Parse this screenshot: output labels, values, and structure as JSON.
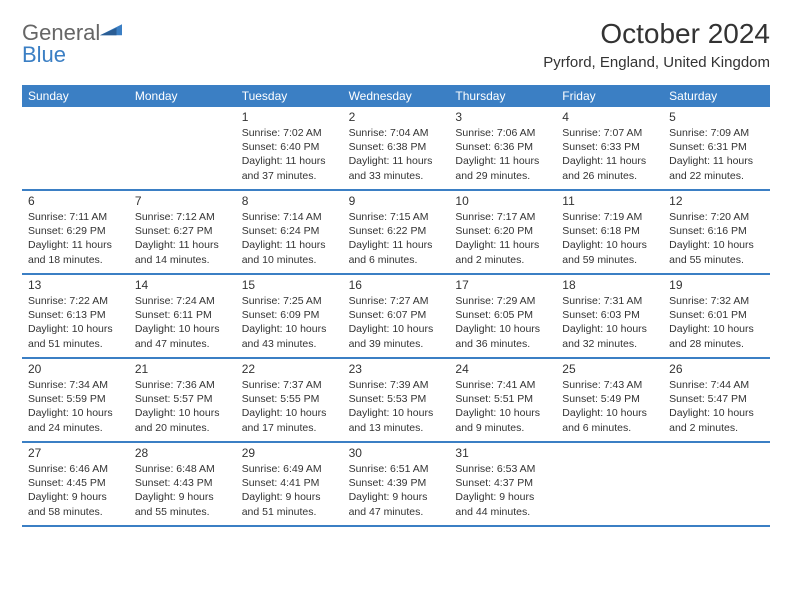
{
  "logo": {
    "text1": "General",
    "text2": "Blue"
  },
  "title": "October 2024",
  "location": "Pyrford, England, United Kingdom",
  "dayHeaders": [
    "Sunday",
    "Monday",
    "Tuesday",
    "Wednesday",
    "Thursday",
    "Friday",
    "Saturday"
  ],
  "header_bg": "#3b7fc4",
  "header_fg": "#ffffff",
  "weeks": [
    [
      {
        "n": "",
        "sr": "",
        "ss": "",
        "dl": ""
      },
      {
        "n": "",
        "sr": "",
        "ss": "",
        "dl": ""
      },
      {
        "n": "1",
        "sr": "Sunrise: 7:02 AM",
        "ss": "Sunset: 6:40 PM",
        "dl": "Daylight: 11 hours and 37 minutes."
      },
      {
        "n": "2",
        "sr": "Sunrise: 7:04 AM",
        "ss": "Sunset: 6:38 PM",
        "dl": "Daylight: 11 hours and 33 minutes."
      },
      {
        "n": "3",
        "sr": "Sunrise: 7:06 AM",
        "ss": "Sunset: 6:36 PM",
        "dl": "Daylight: 11 hours and 29 minutes."
      },
      {
        "n": "4",
        "sr": "Sunrise: 7:07 AM",
        "ss": "Sunset: 6:33 PM",
        "dl": "Daylight: 11 hours and 26 minutes."
      },
      {
        "n": "5",
        "sr": "Sunrise: 7:09 AM",
        "ss": "Sunset: 6:31 PM",
        "dl": "Daylight: 11 hours and 22 minutes."
      }
    ],
    [
      {
        "n": "6",
        "sr": "Sunrise: 7:11 AM",
        "ss": "Sunset: 6:29 PM",
        "dl": "Daylight: 11 hours and 18 minutes."
      },
      {
        "n": "7",
        "sr": "Sunrise: 7:12 AM",
        "ss": "Sunset: 6:27 PM",
        "dl": "Daylight: 11 hours and 14 minutes."
      },
      {
        "n": "8",
        "sr": "Sunrise: 7:14 AM",
        "ss": "Sunset: 6:24 PM",
        "dl": "Daylight: 11 hours and 10 minutes."
      },
      {
        "n": "9",
        "sr": "Sunrise: 7:15 AM",
        "ss": "Sunset: 6:22 PM",
        "dl": "Daylight: 11 hours and 6 minutes."
      },
      {
        "n": "10",
        "sr": "Sunrise: 7:17 AM",
        "ss": "Sunset: 6:20 PM",
        "dl": "Daylight: 11 hours and 2 minutes."
      },
      {
        "n": "11",
        "sr": "Sunrise: 7:19 AM",
        "ss": "Sunset: 6:18 PM",
        "dl": "Daylight: 10 hours and 59 minutes."
      },
      {
        "n": "12",
        "sr": "Sunrise: 7:20 AM",
        "ss": "Sunset: 6:16 PM",
        "dl": "Daylight: 10 hours and 55 minutes."
      }
    ],
    [
      {
        "n": "13",
        "sr": "Sunrise: 7:22 AM",
        "ss": "Sunset: 6:13 PM",
        "dl": "Daylight: 10 hours and 51 minutes."
      },
      {
        "n": "14",
        "sr": "Sunrise: 7:24 AM",
        "ss": "Sunset: 6:11 PM",
        "dl": "Daylight: 10 hours and 47 minutes."
      },
      {
        "n": "15",
        "sr": "Sunrise: 7:25 AM",
        "ss": "Sunset: 6:09 PM",
        "dl": "Daylight: 10 hours and 43 minutes."
      },
      {
        "n": "16",
        "sr": "Sunrise: 7:27 AM",
        "ss": "Sunset: 6:07 PM",
        "dl": "Daylight: 10 hours and 39 minutes."
      },
      {
        "n": "17",
        "sr": "Sunrise: 7:29 AM",
        "ss": "Sunset: 6:05 PM",
        "dl": "Daylight: 10 hours and 36 minutes."
      },
      {
        "n": "18",
        "sr": "Sunrise: 7:31 AM",
        "ss": "Sunset: 6:03 PM",
        "dl": "Daylight: 10 hours and 32 minutes."
      },
      {
        "n": "19",
        "sr": "Sunrise: 7:32 AM",
        "ss": "Sunset: 6:01 PM",
        "dl": "Daylight: 10 hours and 28 minutes."
      }
    ],
    [
      {
        "n": "20",
        "sr": "Sunrise: 7:34 AM",
        "ss": "Sunset: 5:59 PM",
        "dl": "Daylight: 10 hours and 24 minutes."
      },
      {
        "n": "21",
        "sr": "Sunrise: 7:36 AM",
        "ss": "Sunset: 5:57 PM",
        "dl": "Daylight: 10 hours and 20 minutes."
      },
      {
        "n": "22",
        "sr": "Sunrise: 7:37 AM",
        "ss": "Sunset: 5:55 PM",
        "dl": "Daylight: 10 hours and 17 minutes."
      },
      {
        "n": "23",
        "sr": "Sunrise: 7:39 AM",
        "ss": "Sunset: 5:53 PM",
        "dl": "Daylight: 10 hours and 13 minutes."
      },
      {
        "n": "24",
        "sr": "Sunrise: 7:41 AM",
        "ss": "Sunset: 5:51 PM",
        "dl": "Daylight: 10 hours and 9 minutes."
      },
      {
        "n": "25",
        "sr": "Sunrise: 7:43 AM",
        "ss": "Sunset: 5:49 PM",
        "dl": "Daylight: 10 hours and 6 minutes."
      },
      {
        "n": "26",
        "sr": "Sunrise: 7:44 AM",
        "ss": "Sunset: 5:47 PM",
        "dl": "Daylight: 10 hours and 2 minutes."
      }
    ],
    [
      {
        "n": "27",
        "sr": "Sunrise: 6:46 AM",
        "ss": "Sunset: 4:45 PM",
        "dl": "Daylight: 9 hours and 58 minutes."
      },
      {
        "n": "28",
        "sr": "Sunrise: 6:48 AM",
        "ss": "Sunset: 4:43 PM",
        "dl": "Daylight: 9 hours and 55 minutes."
      },
      {
        "n": "29",
        "sr": "Sunrise: 6:49 AM",
        "ss": "Sunset: 4:41 PM",
        "dl": "Daylight: 9 hours and 51 minutes."
      },
      {
        "n": "30",
        "sr": "Sunrise: 6:51 AM",
        "ss": "Sunset: 4:39 PM",
        "dl": "Daylight: 9 hours and 47 minutes."
      },
      {
        "n": "31",
        "sr": "Sunrise: 6:53 AM",
        "ss": "Sunset: 4:37 PM",
        "dl": "Daylight: 9 hours and 44 minutes."
      },
      {
        "n": "",
        "sr": "",
        "ss": "",
        "dl": ""
      },
      {
        "n": "",
        "sr": "",
        "ss": "",
        "dl": ""
      }
    ]
  ]
}
